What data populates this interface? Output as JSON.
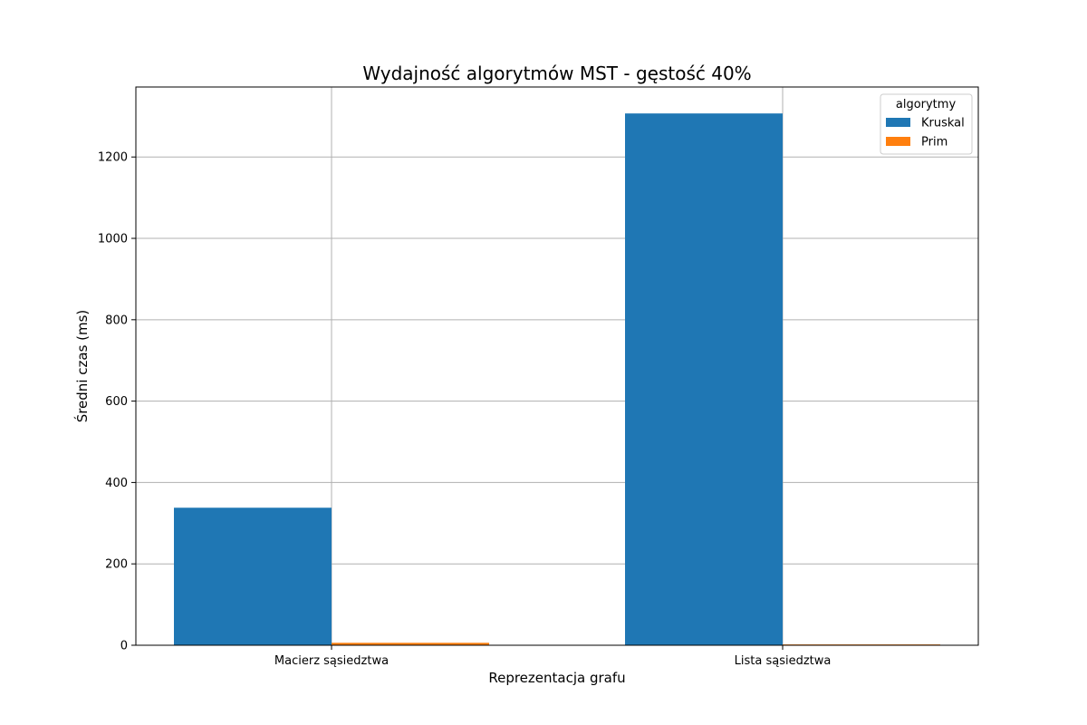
{
  "chart_data": {
    "type": "bar",
    "title": "Wydajność algorytmów MST - gęstość 40%",
    "xlabel": "Reprezentacja grafu",
    "ylabel": "Średni czas (ms)",
    "categories": [
      "Macierz sąsiedztwa",
      "Lista sąsiedztwa"
    ],
    "series": [
      {
        "name": "Kruskal",
        "values": [
          338,
          1307
        ],
        "color": "#1f77b4"
      },
      {
        "name": "Prim",
        "values": [
          6,
          2
        ],
        "color": "#ff7f0e"
      }
    ],
    "ylim": [
      0,
      1372
    ],
    "yticks": [
      0,
      200,
      400,
      600,
      800,
      1000,
      1200
    ],
    "grid": true,
    "legend": {
      "title": "algorytmy",
      "placement": "top-right"
    }
  }
}
